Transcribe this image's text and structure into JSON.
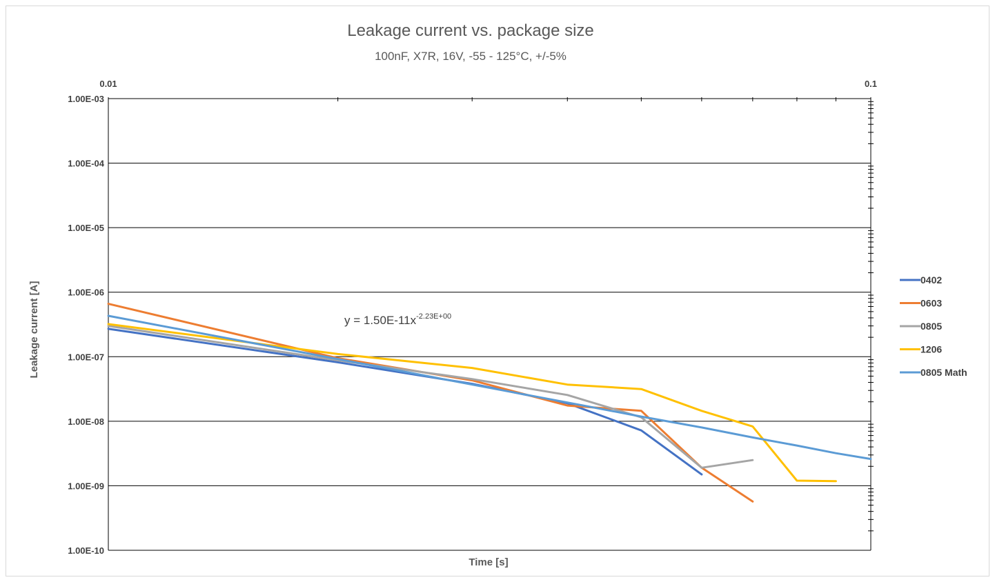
{
  "chart_data": {
    "type": "line",
    "title": "Leakage current vs. package size",
    "subtitle": "100nF, X7R, 16V, -55 - 125°C, +/-5%",
    "xlabel": "Time [s]",
    "ylabel": "Leakage current [A]",
    "x_scale": "log",
    "y_scale": "log",
    "xlim": [
      0.01,
      0.1
    ],
    "ylim": [
      1e-10,
      0.001
    ],
    "x_ticks_labeled": [
      "0.01",
      "0.1"
    ],
    "x_axis_position": "top",
    "y_ticks_labels": [
      "1.00E-03",
      "1.00E-04",
      "1.00E-05",
      "1.00E-06",
      "1.00E-07",
      "1.00E-08",
      "1.00E-09",
      "1.00E-10"
    ],
    "y_ticks_values": [
      0.001,
      0.0001,
      1e-05,
      1e-06,
      1e-07,
      1e-08,
      1e-09,
      1e-10
    ],
    "grid": "horizontal",
    "legend_position": "right",
    "series": [
      {
        "name": "0402",
        "color": "#4472c4",
        "points": [
          [
            0.01,
            2.7e-07
          ],
          [
            0.02,
            8.2e-08
          ],
          [
            0.03,
            3.8e-08
          ],
          [
            0.04,
            1.9e-08
          ],
          [
            0.05,
            7.2e-09
          ],
          [
            0.06,
            1.5e-09
          ]
        ]
      },
      {
        "name": "0603",
        "color": "#ed7d31",
        "points": [
          [
            0.01,
            6.6e-07
          ],
          [
            0.02,
            9.5e-08
          ],
          [
            0.03,
            4.3e-08
          ],
          [
            0.04,
            1.75e-08
          ],
          [
            0.05,
            1.45e-08
          ],
          [
            0.06,
            1.9e-09
          ],
          [
            0.07,
            5.7e-10
          ]
        ]
      },
      {
        "name": "0805",
        "color": "#a5a5a5",
        "points": [
          [
            0.01,
            3e-07
          ],
          [
            0.02,
            8.8e-08
          ],
          [
            0.03,
            4.5e-08
          ],
          [
            0.04,
            2.55e-08
          ],
          [
            0.05,
            1.15e-08
          ],
          [
            0.06,
            1.9e-09
          ],
          [
            0.07,
            2.5e-09
          ]
        ]
      },
      {
        "name": "1206",
        "color": "#ffc000",
        "points": [
          [
            0.01,
            3.2e-07
          ],
          [
            0.02,
            1.1e-07
          ],
          [
            0.03,
            6.7e-08
          ],
          [
            0.04,
            3.7e-08
          ],
          [
            0.05,
            3.15e-08
          ],
          [
            0.06,
            1.45e-08
          ],
          [
            0.07,
            8.3e-09
          ],
          [
            0.08,
            1.2e-09
          ],
          [
            0.09,
            1.18e-09
          ]
        ]
      },
      {
        "name": "0805 Math",
        "color": "#5b9bd5",
        "points": [
          [
            0.01,
            4.3e-07
          ],
          [
            0.02,
            9.2e-08
          ],
          [
            0.03,
            3.7e-08
          ],
          [
            0.04,
            1.95e-08
          ],
          [
            0.05,
            1.18e-08
          ],
          [
            0.06,
            8e-09
          ],
          [
            0.07,
            5.6e-09
          ],
          [
            0.08,
            4.2e-09
          ],
          [
            0.09,
            3.2e-09
          ],
          [
            0.1,
            2.6e-09
          ]
        ]
      }
    ],
    "annotation": {
      "text": "y = 1.50E-11x",
      "superscript": "-2.23E+00"
    }
  }
}
